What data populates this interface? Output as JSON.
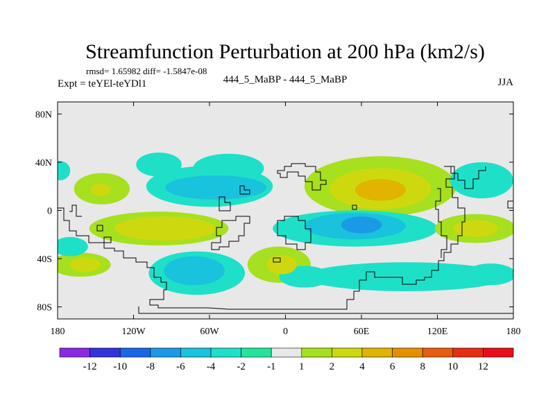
{
  "chart_data": {
    "type": "heatmap",
    "title": "Streamfunction Perturbation at 200 hPa (km2/s)",
    "subtitle_stats": "rmsd= 1.65982 diff= -1.5847e-08",
    "subtitle_left": "Expt = teYEl-teYDl1",
    "subtitle_center": "444_5_MaBP - 444_5_MaBP",
    "subtitle_right": "JJA",
    "xlabel": "",
    "ylabel": "",
    "xlim": [
      -180,
      180
    ],
    "ylim": [
      -90,
      90
    ],
    "x_ticks": [
      {
        "value": -180,
        "label": "180"
      },
      {
        "value": -120,
        "label": "120W"
      },
      {
        "value": -60,
        "label": "60W"
      },
      {
        "value": 0,
        "label": "0"
      },
      {
        "value": 60,
        "label": "60E"
      },
      {
        "value": 120,
        "label": "120E"
      },
      {
        "value": 180,
        "label": "180"
      }
    ],
    "y_ticks": [
      {
        "value": 80,
        "label": "80N"
      },
      {
        "value": 40,
        "label": "40N"
      },
      {
        "value": 0,
        "label": "0"
      },
      {
        "value": -40,
        "label": "40S"
      },
      {
        "value": -80,
        "label": "80S"
      }
    ],
    "colorbar": {
      "labels": [
        "-12",
        "-10",
        "-8",
        "-6",
        "-4",
        "-2",
        "-1",
        "1",
        "2",
        "4",
        "6",
        "8",
        "10",
        "12"
      ],
      "colors": [
        "#8a2be2",
        "#3333dd",
        "#1a66e6",
        "#1a99e6",
        "#19c2dd",
        "#1ee0c8",
        "#23e49a",
        "#e8e8e8",
        "#a6e01e",
        "#cdd90e",
        "#e0b400",
        "#e69000",
        "#e65c10",
        "#e62e14",
        "#e80f1a"
      ]
    },
    "regions": [
      {
        "name": "negative-anomaly-n-pacific",
        "lon": -178,
        "lat": 33,
        "rlon": 8,
        "rlat": 8,
        "level": -2
      },
      {
        "name": "positive-anomaly-ne-pacific",
        "lon": -145,
        "lat": 18,
        "rlon": 22,
        "rlat": 13,
        "level": 2
      },
      {
        "name": "positive-anomaly-ne-pacific-core",
        "lon": -146,
        "lat": 17,
        "rlon": 8,
        "rlat": 5,
        "level": 4
      },
      {
        "name": "negative-anomaly-n-america-west",
        "lon": -100,
        "lat": 38,
        "rlon": 18,
        "rlat": 10,
        "level": -2
      },
      {
        "name": "negative-anomaly-n-atlantic",
        "lon": -45,
        "lat": 35,
        "rlon": 28,
        "rlat": 12,
        "level": -2
      },
      {
        "name": "negative-anomaly-n-america",
        "lon": -60,
        "lat": 20,
        "rlon": 50,
        "rlat": 17,
        "level": -2
      },
      {
        "name": "negative-anomaly-n-america-core",
        "lon": -55,
        "lat": 19,
        "rlon": 40,
        "rlat": 10,
        "level": -4
      },
      {
        "name": "positive-anomaly-tropical-atlantic",
        "lon": -100,
        "lat": -15,
        "rlon": 55,
        "rlat": 14,
        "level": 2
      },
      {
        "name": "positive-anomaly-tropical-atlantic-core",
        "lon": -95,
        "lat": -15,
        "rlon": 40,
        "rlat": 10,
        "level": 4
      },
      {
        "name": "positive-anomaly-s-pacific",
        "lon": -162,
        "lat": -45,
        "rlon": 24,
        "rlat": 10,
        "level": 2
      },
      {
        "name": "positive-anomaly-s-pacific-core",
        "lon": -158,
        "lat": -45,
        "rlon": 12,
        "rlat": 6,
        "level": 4
      },
      {
        "name": "negative-anomaly-s-pacific",
        "lon": -170,
        "lat": -30,
        "rlon": 14,
        "rlat": 8,
        "level": -2
      },
      {
        "name": "negative-anomaly-se-pacific",
        "lon": -70,
        "lat": -52,
        "rlon": 38,
        "rlat": 18,
        "level": -2
      },
      {
        "name": "negative-anomaly-se-pacific-core",
        "lon": -72,
        "lat": -50,
        "rlon": 24,
        "rlat": 12,
        "level": -4
      },
      {
        "name": "positive-anomaly-s-atlantic",
        "lon": -5,
        "lat": -45,
        "rlon": 25,
        "rlat": 15,
        "level": 2
      },
      {
        "name": "positive-anomaly-s-atlantic-core",
        "lon": -3,
        "lat": -45,
        "rlon": 12,
        "rlat": 8,
        "level": 4
      },
      {
        "name": "positive-anomaly-n-asia",
        "lon": 75,
        "lat": 20,
        "rlon": 60,
        "rlat": 25,
        "level": 2
      },
      {
        "name": "positive-anomaly-n-asia-mid",
        "lon": 75,
        "lat": 18,
        "rlon": 40,
        "rlat": 17,
        "level": 4
      },
      {
        "name": "positive-anomaly-n-asia-core",
        "lon": 75,
        "lat": 17,
        "rlon": 20,
        "rlat": 9,
        "level": 6
      },
      {
        "name": "negative-anomaly-indian-ocean",
        "lon": 55,
        "lat": -15,
        "rlon": 65,
        "rlat": 15,
        "level": -2
      },
      {
        "name": "negative-anomaly-indian-ocean-mid",
        "lon": 55,
        "lat": -13,
        "rlon": 40,
        "rlat": 11,
        "level": -4
      },
      {
        "name": "negative-anomaly-indian-ocean-core",
        "lon": 60,
        "lat": -12,
        "rlon": 16,
        "rlat": 7,
        "level": -6
      },
      {
        "name": "negative-anomaly-nw-pacific",
        "lon": 155,
        "lat": 25,
        "rlon": 25,
        "rlat": 15,
        "level": -2
      },
      {
        "name": "positive-anomaly-australia",
        "lon": 150,
        "lat": -15,
        "rlon": 32,
        "rlat": 12,
        "level": 2
      },
      {
        "name": "positive-anomaly-australia-core",
        "lon": 150,
        "lat": -15,
        "rlon": 18,
        "rlat": 7,
        "level": 4
      },
      {
        "name": "negative-anomaly-s-indian-ocean",
        "lon": 95,
        "lat": -55,
        "rlon": 80,
        "rlat": 12,
        "level": -2
      },
      {
        "name": "negative-anomaly-s-pacific-east",
        "lon": 162,
        "lat": -53,
        "rlon": 20,
        "rlat": 9,
        "level": -2
      },
      {
        "name": "negative-anomaly-s-ocean-west",
        "lon": 15,
        "lat": -55,
        "rlon": 20,
        "rlat": 9,
        "level": -2
      }
    ]
  }
}
